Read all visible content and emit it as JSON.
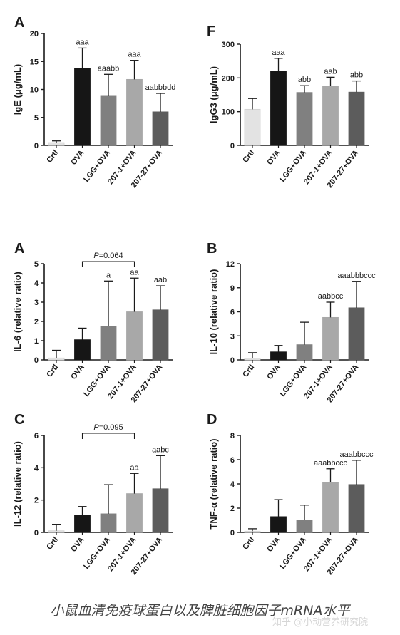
{
  "caption": "小鼠血清免疫球蛋白以及脾脏细胞因子mRNA水平",
  "watermark": "知乎 @小动营养研究院",
  "chart_data": [
    {
      "type": "bar",
      "panel": "A",
      "ylabel": "IgE (μg/mL)",
      "categories": [
        "Crtl",
        "OVA",
        "LGG+OVA",
        "207-1+OVA",
        "207-27+OVA"
      ],
      "values": [
        0.5,
        13.8,
        8.8,
        11.8,
        6.0
      ],
      "errors": [
        0.3,
        3.6,
        3.9,
        3.4,
        3.3
      ],
      "annotations": [
        "",
        "aaa",
        "aaabb",
        "aaa",
        "aabbbdd"
      ],
      "colors": [
        "#e3e3e3",
        "#161616",
        "#808080",
        "#a8a8a8",
        "#5c5c5c"
      ],
      "ylim": [
        0,
        20
      ],
      "yticks": [
        "0",
        "5",
        "10",
        "15",
        "20"
      ]
    },
    {
      "type": "bar",
      "panel": "F",
      "ylabel": "IgG3 (μg/mL)",
      "categories": [
        "Crtl",
        "OVA",
        "LGG+OVA",
        "207-1+OVA",
        "207-27+OVA"
      ],
      "values": [
        107,
        220,
        157,
        176,
        158
      ],
      "errors": [
        32,
        38,
        20,
        26,
        33
      ],
      "annotations": [
        "",
        "aaa",
        "abb",
        "aab",
        "abb"
      ],
      "colors": [
        "#e3e3e3",
        "#161616",
        "#808080",
        "#a8a8a8",
        "#5c5c5c"
      ],
      "ylim": [
        0,
        300
      ],
      "yticks": [
        "0",
        "100",
        "200",
        "300"
      ]
    },
    {
      "type": "bar",
      "panel": "A",
      "ylabel": "IL-6 (relative ratio)",
      "categories": [
        "Crtl",
        "OVA",
        "LGG+OVA",
        "207-1+OVA",
        "207-27+OVA"
      ],
      "values": [
        0.1,
        1.05,
        1.75,
        2.5,
        2.6
      ],
      "errors": [
        0.4,
        0.6,
        2.35,
        1.75,
        1.25
      ],
      "annotations": [
        "",
        "",
        "a",
        "aa",
        "aab"
      ],
      "colors": [
        "#e3e3e3",
        "#161616",
        "#808080",
        "#a8a8a8",
        "#5c5c5c"
      ],
      "ylim": [
        0,
        5
      ],
      "yticks": [
        "0",
        "1",
        "2",
        "3",
        "4",
        "5"
      ],
      "bracket": {
        "from": 1,
        "to": 3,
        "label": "P=0.064"
      }
    },
    {
      "type": "bar",
      "panel": "B",
      "ylabel": "IL-10 (relative ratio)",
      "categories": [
        "Crtl",
        "OVA",
        "LGG+OVA",
        "207-1+OVA",
        "207-27+OVA"
      ],
      "values": [
        0.2,
        1.0,
        1.9,
        5.3,
        6.5
      ],
      "errors": [
        0.7,
        0.8,
        2.8,
        1.9,
        3.3
      ],
      "annotations": [
        "",
        "",
        "",
        "aabbcc",
        "aaabbbccc"
      ],
      "colors": [
        "#e3e3e3",
        "#161616",
        "#808080",
        "#a8a8a8",
        "#5c5c5c"
      ],
      "ylim": [
        0,
        12
      ],
      "yticks": [
        "0",
        "3",
        "6",
        "9",
        "12"
      ]
    },
    {
      "type": "bar",
      "panel": "C",
      "ylabel": "IL-12 (relative ratio)",
      "categories": [
        "Crtl",
        "OVA",
        "LGG+OVA",
        "207-1+OVA",
        "207-27+OVA"
      ],
      "values": [
        0.1,
        1.05,
        1.15,
        2.4,
        2.7
      ],
      "errors": [
        0.4,
        0.55,
        1.8,
        1.25,
        2.05
      ],
      "annotations": [
        "",
        "",
        "",
        "aa",
        "aabc"
      ],
      "colors": [
        "#e3e3e3",
        "#161616",
        "#808080",
        "#a8a8a8",
        "#5c5c5c"
      ],
      "ylim": [
        0,
        6
      ],
      "yticks": [
        "0",
        "2",
        "4",
        "6"
      ],
      "bracket": {
        "from": 1,
        "to": 3,
        "label": "P=0.095"
      }
    },
    {
      "type": "bar",
      "panel": "D",
      "ylabel": "TNF-α (relative ratio)",
      "categories": [
        "Crtl",
        "OVA",
        "LGG+OVA",
        "207-1+OVA",
        "207-27+OVA"
      ],
      "values": [
        0.1,
        1.3,
        1.0,
        4.15,
        3.95
      ],
      "errors": [
        0.2,
        1.4,
        1.25,
        1.1,
        2.0
      ],
      "annotations": [
        "",
        "",
        "",
        "aaabbccc",
        "aaabbccc"
      ],
      "colors": [
        "#e3e3e3",
        "#161616",
        "#808080",
        "#a8a8a8",
        "#5c5c5c"
      ],
      "ylim": [
        0,
        8
      ],
      "yticks": [
        "0",
        "2",
        "4",
        "6",
        "8"
      ]
    }
  ]
}
